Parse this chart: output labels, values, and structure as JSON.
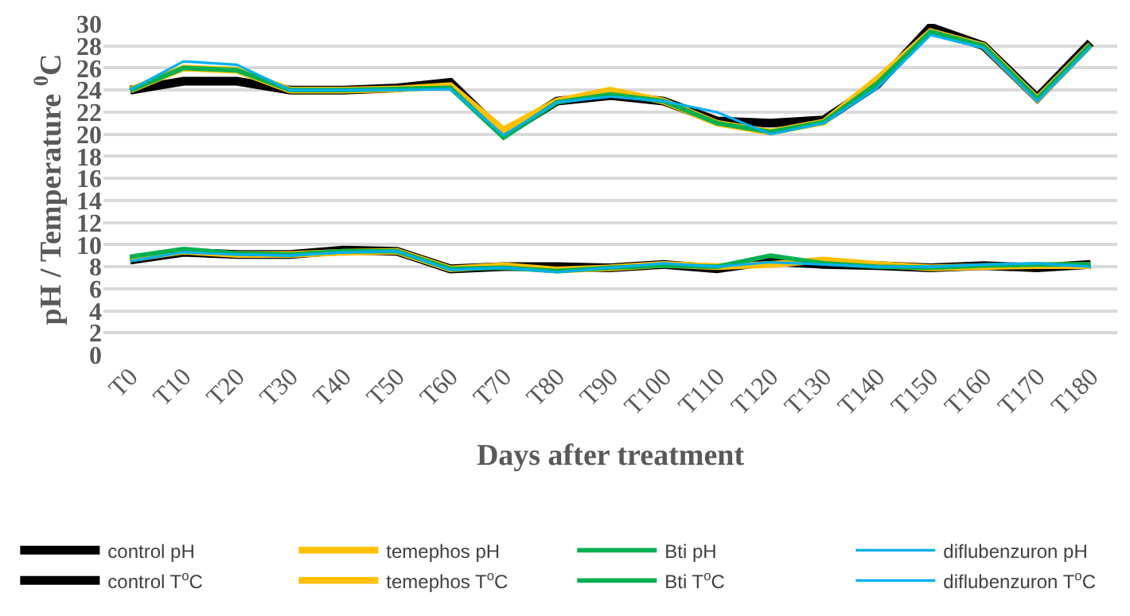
{
  "chart_data": {
    "type": "line",
    "xlabel": "Days after treatment",
    "ylabel": "pH / Temperature $^{0}$C",
    "categories": [
      "T0",
      "T10",
      "T20",
      "T30",
      "T40",
      "T50",
      "T60",
      "T70",
      "T80",
      "T90",
      "T100",
      "T110",
      "T120",
      "T130",
      "T140",
      "T150",
      "T160",
      "T170",
      "T180"
    ],
    "ylim": [
      0,
      30
    ],
    "yticks": [
      0,
      2,
      4,
      6,
      8,
      10,
      12,
      14,
      16,
      18,
      20,
      22,
      24,
      26,
      28,
      30
    ],
    "grid": "y",
    "legend": "bottom",
    "marker": "none",
    "line_style": "solid",
    "series": [
      {
        "name": "control pH",
        "color": "#000000",
        "values": [
          8.6,
          9.3,
          9.1,
          9.1,
          9.5,
          9.4,
          7.8,
          8.0,
          8.0,
          7.9,
          8.2,
          7.8,
          8.5,
          8.2,
          8.1,
          7.9,
          8.1,
          7.9,
          8.2
        ]
      },
      {
        "name": "temephos pH",
        "color": "#ffc000",
        "values": [
          8.7,
          9.4,
          9.1,
          9.1,
          9.3,
          9.4,
          7.8,
          8.1,
          7.7,
          7.9,
          8.2,
          8.0,
          8.2,
          8.6,
          8.2,
          7.9,
          8.0,
          8.1,
          8.1
        ]
      },
      {
        "name": "Bti pH",
        "color": "#00b050",
        "values": [
          8.9,
          9.6,
          9.2,
          9.1,
          9.4,
          9.4,
          7.8,
          7.9,
          7.6,
          7.9,
          8.1,
          8.0,
          9.0,
          8.3,
          8.0,
          7.9,
          8.1,
          8.2,
          8.2
        ]
      },
      {
        "name": "diflubenzuron pH",
        "color": "#00b0f0",
        "values": [
          8.5,
          9.3,
          9.1,
          9.0,
          9.3,
          9.4,
          7.7,
          7.9,
          7.5,
          7.9,
          8.3,
          8.0,
          8.4,
          8.2,
          8.0,
          8.0,
          8.2,
          8.3,
          8.0
        ]
      },
      {
        "name": "control T$^{o}$C",
        "color": "#000000",
        "values": [
          24,
          24.8,
          24.8,
          24,
          24,
          24.2,
          24.7,
          20,
          23,
          23.5,
          23,
          21.2,
          21,
          21.3,
          24.5,
          29.7,
          28,
          23.3,
          28.3
        ]
      },
      {
        "name": "temephos T$^{o}$C",
        "color": "#ffc000",
        "values": [
          24,
          26,
          25.8,
          24,
          24,
          24.1,
          24.4,
          20.4,
          23,
          24,
          23,
          21,
          20.2,
          21.1,
          25,
          29.3,
          28,
          23.2,
          28.1
        ]
      },
      {
        "name": "Bti T$^{o}$C",
        "color": "#00b050",
        "values": [
          24,
          26,
          25.8,
          24,
          24,
          24.1,
          24.2,
          19.7,
          22.9,
          23.6,
          23,
          21,
          20.2,
          21.1,
          24.6,
          29.3,
          28,
          23.2,
          28.1
        ]
      },
      {
        "name": "diflubenzuron T$^{o}$C",
        "color": "#00b0f0",
        "values": [
          24,
          26.6,
          26.3,
          24,
          24,
          24,
          24.1,
          19.9,
          22.9,
          23.4,
          23,
          22,
          20,
          21,
          24.2,
          29,
          27.8,
          23,
          27.9
        ]
      }
    ]
  }
}
